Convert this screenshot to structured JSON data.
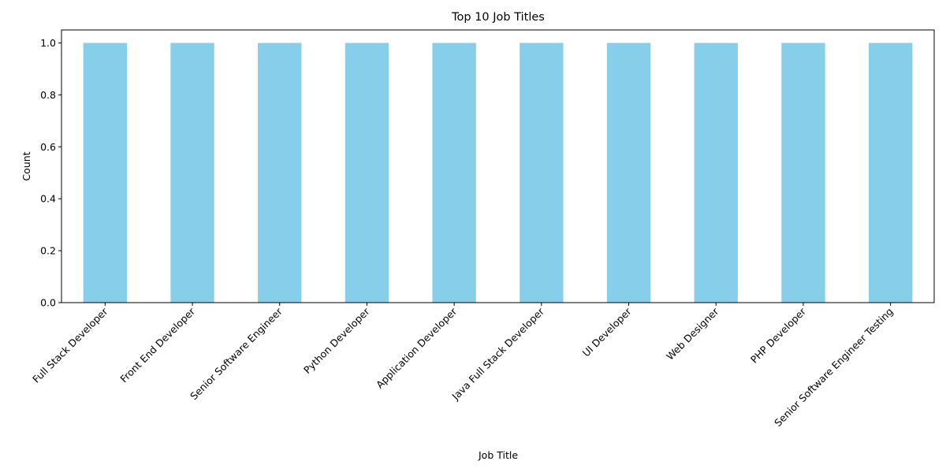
{
  "chart_data": {
    "type": "bar",
    "title": "Top 10 Job Titles",
    "xlabel": "Job Title",
    "ylabel": "Count",
    "categories": [
      "Full Stack Developer",
      "Front End Developer",
      "Senior Software Engineer",
      "Python Developer",
      "Application Developer",
      "Java Full Stack Developer",
      "UI Developer",
      "Web Designer",
      "PHP Developer",
      "Senior Software Engineer Testing"
    ],
    "values": [
      1,
      1,
      1,
      1,
      1,
      1,
      1,
      1,
      1,
      1
    ],
    "ylim": [
      0,
      1.05
    ],
    "yticks": [
      "0.0",
      "0.2",
      "0.4",
      "0.6",
      "0.8",
      "1.0"
    ],
    "bar_color": "#87CEEB",
    "grid": false,
    "legend": "none"
  }
}
